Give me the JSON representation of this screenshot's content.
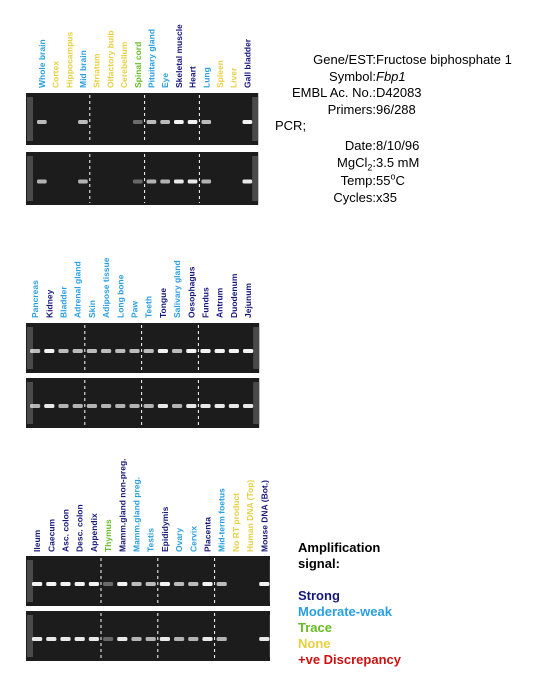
{
  "info": {
    "rows": [
      {
        "label": "Gene/EST:",
        "value": "Fructose biphosphate 1"
      },
      {
        "label": "Symbol:",
        "value": "Fbp1",
        "italic": true
      },
      {
        "label": "EMBL Ac. No.:",
        "value": "D42083"
      },
      {
        "label": "Primers:",
        "value": "96/288"
      }
    ],
    "pcr": "PCR;",
    "pcr_rows": [
      {
        "label": "Date:",
        "value": "8/10/96"
      },
      {
        "label": "MgCl",
        "label_sub": "2",
        "label_end": ":",
        "value": "3.5 mM"
      },
      {
        "label": "Temp:",
        "value": "55",
        "value_sup": "o",
        "value_end": "C"
      },
      {
        "label": "Cycles:",
        "value": "x35"
      }
    ]
  },
  "legend": {
    "title": [
      "Amplification",
      "signal:"
    ],
    "items": [
      {
        "label": "Strong",
        "color": "#17177a"
      },
      {
        "label": "Moderate-weak",
        "color": "#2a9fe0"
      },
      {
        "label": "Trace",
        "color": "#66bb22"
      },
      {
        "label": "None",
        "color": "#e6d040"
      },
      {
        "label": "+ve Discrepancy",
        "color": "#cc1111"
      }
    ]
  },
  "panels": [
    {
      "lanes": [
        {
          "label": "Whole brain",
          "color": "#2a9fe0"
        },
        {
          "label": "Cortex",
          "color": "#e6d040"
        },
        {
          "label": "Hippocampus",
          "color": "#e6d040"
        },
        {
          "label": "Mid brain",
          "color": "#2a9fe0"
        },
        {
          "label": "Striatum",
          "color": "#e6d040"
        },
        {
          "label": "Olfactory bulb",
          "color": "#e6d040"
        },
        {
          "label": "Cerebellum",
          "color": "#e6d040"
        },
        {
          "label": "Spinal cord",
          "color": "#66bb22"
        },
        {
          "label": "Pituitary gland",
          "color": "#2a9fe0"
        },
        {
          "label": "Eye",
          "color": "#2a9fe0"
        },
        {
          "label": "Skeletal muscle",
          "color": "#17177a"
        },
        {
          "label": "Heart",
          "color": "#17177a"
        },
        {
          "label": "Lung",
          "color": "#2a9fe0"
        },
        {
          "label": "Spleen",
          "color": "#e6d040"
        },
        {
          "label": "Liver",
          "color": "#e6d040"
        },
        {
          "label": "Gall bladder",
          "color": "#17177a"
        }
      ]
    },
    {
      "lanes": [
        {
          "label": "Pancreas",
          "color": "#2a9fe0"
        },
        {
          "label": "Kidney",
          "color": "#17177a"
        },
        {
          "label": "Bladder",
          "color": "#2a9fe0"
        },
        {
          "label": "Adrenal gland",
          "color": "#2a9fe0"
        },
        {
          "label": "Skin",
          "color": "#2a9fe0"
        },
        {
          "label": "Adipose tissue",
          "color": "#2a9fe0"
        },
        {
          "label": "Long bone",
          "color": "#2a9fe0"
        },
        {
          "label": "Paw",
          "color": "#2a9fe0"
        },
        {
          "label": "Teeth",
          "color": "#2a9fe0"
        },
        {
          "label": "Tongue",
          "color": "#17177a"
        },
        {
          "label": "Salivary gland",
          "color": "#2a9fe0"
        },
        {
          "label": "Oesophagus",
          "color": "#17177a"
        },
        {
          "label": "Fundus",
          "color": "#17177a"
        },
        {
          "label": "Antrum",
          "color": "#17177a"
        },
        {
          "label": "Duodenum",
          "color": "#17177a"
        },
        {
          "label": "Jejunum",
          "color": "#17177a"
        }
      ]
    },
    {
      "lanes": [
        {
          "label": "Ileum",
          "color": "#17177a"
        },
        {
          "label": "Caecum",
          "color": "#17177a"
        },
        {
          "label": "Asc. colon",
          "color": "#17177a"
        },
        {
          "label": "Desc. colon",
          "color": "#17177a"
        },
        {
          "label": "Appendix",
          "color": "#17177a"
        },
        {
          "label": "Thymus",
          "color": "#66bb22"
        },
        {
          "label": "Mamm.gland non-preg.",
          "color": "#17177a"
        },
        {
          "label": "Mamm.gland preg.",
          "color": "#2a9fe0"
        },
        {
          "label": "Testis",
          "color": "#2a9fe0"
        },
        {
          "label": "Epididymis",
          "color": "#17177a"
        },
        {
          "label": "Ovary",
          "color": "#2a9fe0"
        },
        {
          "label": "Cervix",
          "color": "#2a9fe0"
        },
        {
          "label": "Placenta",
          "color": "#17177a"
        },
        {
          "label": "Mid-term foetus",
          "color": "#2a9fe0"
        },
        {
          "label": "No RT product",
          "color": "#e6d040"
        },
        {
          "label": "Human DNA (Top)",
          "color": "#e6d040"
        },
        {
          "label": "Mouse DNA (Bot.)",
          "color": "#17177a"
        }
      ]
    }
  ]
}
